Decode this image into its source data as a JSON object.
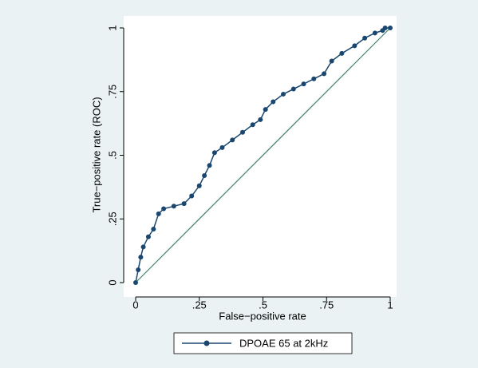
{
  "chart_data": {
    "type": "line",
    "x_label": "False−positive rate",
    "y_label": "True−positive rate (ROC)",
    "xlim": [
      0,
      1
    ],
    "ylim": [
      0,
      1
    ],
    "xticks": [
      0,
      {
        "value": 0.25,
        "label": ".25"
      },
      {
        "value": 0.5,
        "label": ".5"
      },
      {
        "value": 0.75,
        "label": ".75"
      },
      1
    ],
    "yticks": [
      0,
      {
        "value": 0.25,
        "label": ".25"
      },
      {
        "value": 0.5,
        "label": ".5"
      },
      {
        "value": 0.75,
        "label": ".75"
      },
      1
    ],
    "reference_line": {
      "color": "#3e7f6d"
    },
    "series": [
      {
        "name": "DPOAE 65 at 2kHz",
        "color": "#1a476f",
        "x": [
          0,
          0.01,
          0.02,
          0.03,
          0.05,
          0.07,
          0.09,
          0.11,
          0.15,
          0.19,
          0.22,
          0.25,
          0.27,
          0.29,
          0.31,
          0.34,
          0.38,
          0.42,
          0.46,
          0.49,
          0.51,
          0.54,
          0.58,
          0.62,
          0.66,
          0.7,
          0.74,
          0.77,
          0.81,
          0.86,
          0.9,
          0.94,
          0.97,
          0.98,
          1
        ],
        "values": [
          0,
          0.05,
          0.1,
          0.14,
          0.18,
          0.21,
          0.27,
          0.29,
          0.3,
          0.31,
          0.34,
          0.38,
          0.42,
          0.46,
          0.51,
          0.53,
          0.56,
          0.59,
          0.62,
          0.64,
          0.68,
          0.71,
          0.74,
          0.76,
          0.78,
          0.8,
          0.82,
          0.87,
          0.9,
          0.93,
          0.96,
          0.98,
          0.99,
          1,
          1
        ]
      }
    ]
  }
}
